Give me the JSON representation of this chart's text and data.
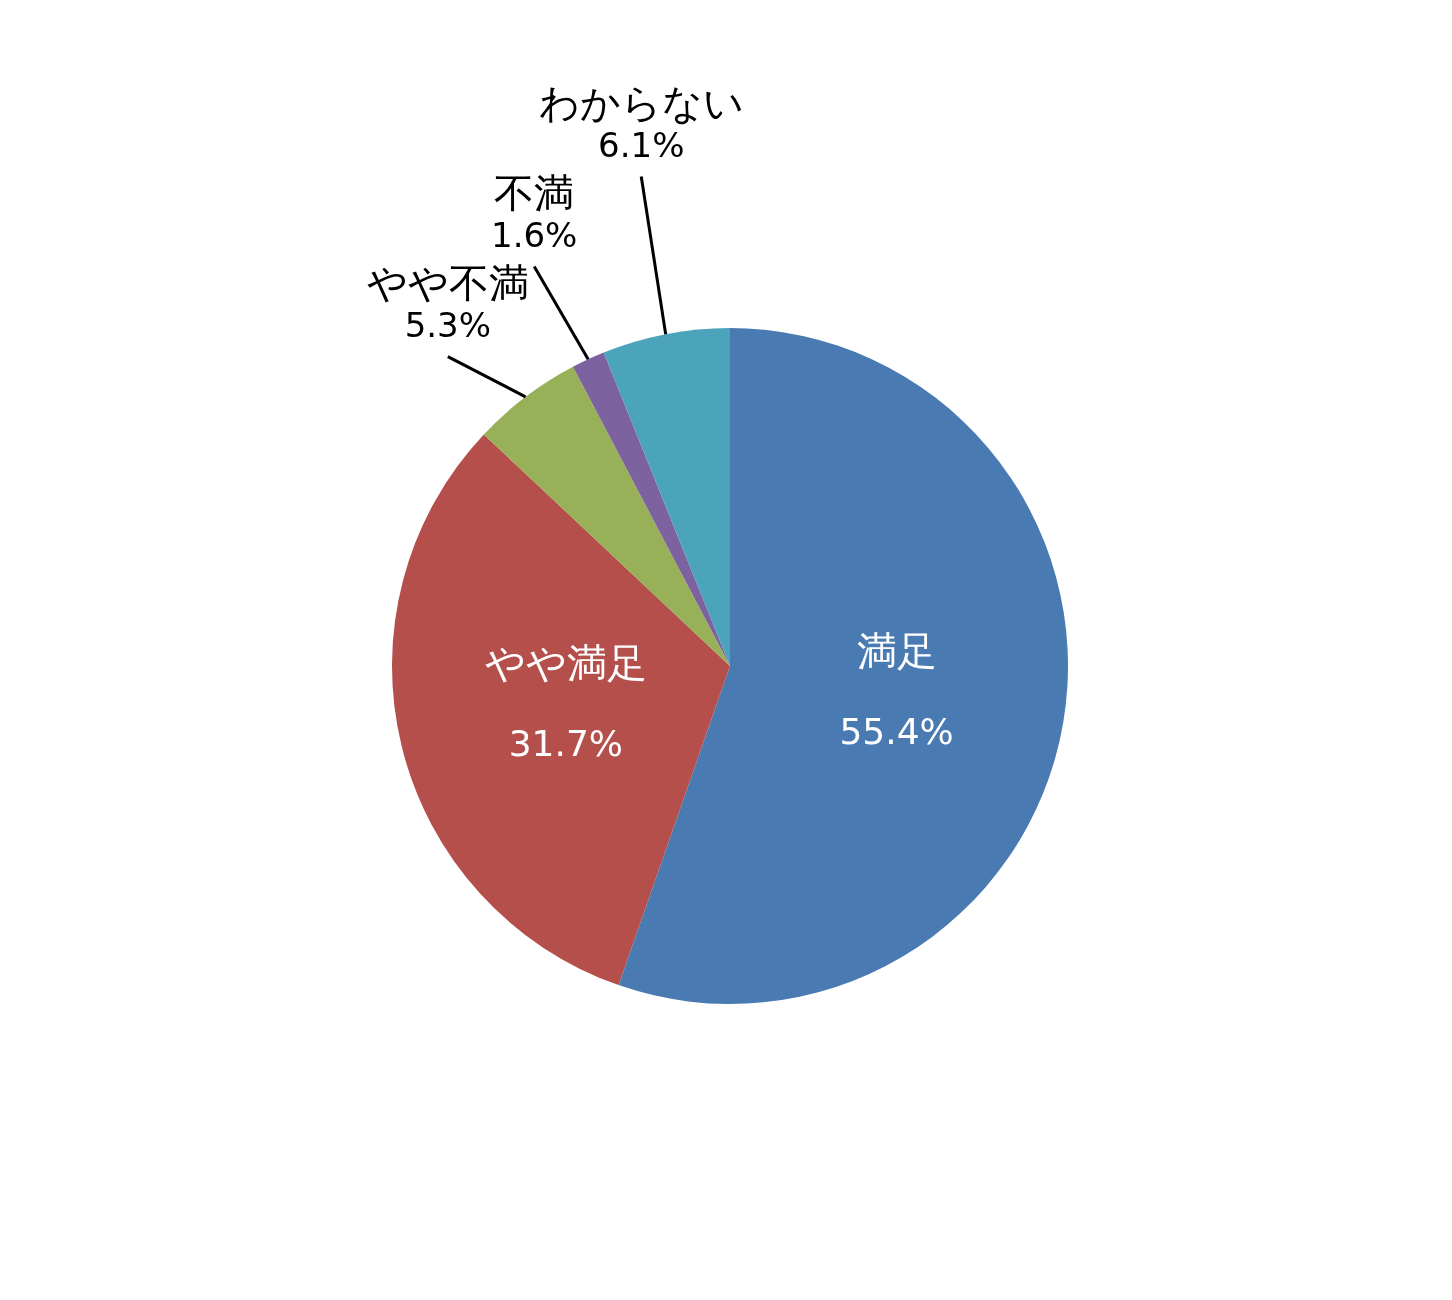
{
  "chart_data": {
    "type": "pie",
    "categories": [
      "満足",
      "やや満足",
      "やや不満",
      "不満",
      "わからない"
    ],
    "values": [
      55.4,
      31.7,
      5.3,
      1.6,
      6.1
    ],
    "colors": [
      "#4a7ab2",
      "#b54f4c",
      "#98b158",
      "#7d62a0",
      "#4ba3bc"
    ],
    "value_labels": [
      "55.4%",
      "31.7%",
      "5.3%",
      "1.6%",
      "6.1%"
    ],
    "legend": false
  }
}
